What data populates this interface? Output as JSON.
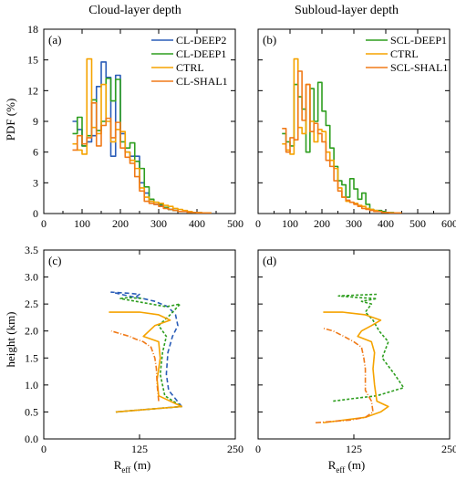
{
  "titles": {
    "left": "Cloud-layer depth",
    "right": "Subloud-layer depth"
  },
  "colors": {
    "CL-DEEP2": "#2a5db8",
    "CL-DEEP1": "#2e9e1f",
    "SCL-DEEP1": "#2e9e1f",
    "CTRL": "#f5a300",
    "CL-SHAL1": "#f07a18",
    "SCL-SHAL1": "#f07a18"
  },
  "axes": {
    "pdf_ylabel": "PDF (%)",
    "height_ylabel": "height (km)",
    "xlabel_main": "R",
    "xlabel_sub": "eff",
    "xlabel_unit": " (m)"
  },
  "chart_data": [
    {
      "panel": "a",
      "label": "(a)",
      "type": "line",
      "step": true,
      "bin_width": 12.5,
      "xlim": [
        0,
        500
      ],
      "ylim": [
        0,
        18
      ],
      "xticks": [
        0,
        100,
        200,
        300,
        400,
        500
      ],
      "yticks": [
        0,
        3,
        6,
        9,
        12,
        15,
        18
      ],
      "legend_position": "top-right",
      "series": [
        {
          "name": "CL-DEEP2",
          "x0": 75,
          "values": [
            9.0,
            8.2,
            6.6,
            7.0,
            7.6,
            12.4,
            14.8,
            13.3,
            5.6,
            13.5,
            7.8,
            6.0,
            5.6,
            5.6,
            3.0,
            2.0,
            1.2,
            0.9,
            0.8,
            0.6,
            0.4,
            0.3,
            0.2,
            0.2,
            0.1,
            0.1,
            0.1,
            0.05,
            0.05
          ]
        },
        {
          "name": "CL-DEEP1",
          "x0": 75,
          "values": [
            7.8,
            9.4,
            6.6,
            7.6,
            11.1,
            8.1,
            9.0,
            13.2,
            11.0,
            13.1,
            7.0,
            6.4,
            6.9,
            5.1,
            4.4,
            2.6,
            1.4,
            1.1,
            0.9,
            0.6,
            0.4,
            0.3,
            0.2,
            0.2,
            0.1,
            0.1,
            0.05,
            0.05,
            0.05
          ]
        },
        {
          "name": "CTRL",
          "x0": 75,
          "values": [
            6.8,
            6.2,
            5.8,
            15.1,
            8.4,
            7.8,
            12.6,
            9.0,
            7.0,
            8.2,
            8.0,
            6.0,
            5.2,
            4.4,
            2.5,
            1.6,
            1.2,
            1.1,
            1.0,
            0.8,
            0.7,
            0.5,
            0.4,
            0.3,
            0.2,
            0.1,
            0.1,
            0.05,
            0.05
          ]
        },
        {
          "name": "CL-SHAL1",
          "x0": 75,
          "values": [
            6.2,
            7.6,
            6.8,
            7.4,
            10.8,
            6.6,
            8.6,
            9.3,
            7.4,
            8.9,
            6.4,
            5.5,
            4.9,
            3.6,
            2.2,
            1.2,
            1.0,
            0.9,
            0.7,
            0.5,
            0.4,
            0.3,
            0.2,
            0.2,
            0.1,
            0.1,
            0.05,
            0.05,
            0.05
          ]
        }
      ]
    },
    {
      "panel": "b",
      "label": "(b)",
      "type": "line",
      "step": true,
      "bin_width": 12.5,
      "xlim": [
        0,
        600
      ],
      "ylim": [
        0,
        18
      ],
      "xticks": [
        0,
        100,
        200,
        300,
        400,
        500,
        600
      ],
      "yticks": [
        0,
        3,
        6,
        9,
        12,
        15,
        18
      ],
      "legend_position": "top-right",
      "series": [
        {
          "name": "SCL-DEEP1",
          "x0": 75,
          "values": [
            7.8,
            7.0,
            6.6,
            12.6,
            11.4,
            10.2,
            6.0,
            12.2,
            9.0,
            12.8,
            10.0,
            8.6,
            6.4,
            4.6,
            3.2,
            2.8,
            1.6,
            3.4,
            2.4,
            1.4,
            2.0,
            0.9,
            0.4,
            0.3,
            0.3,
            0.2,
            0.1,
            0.1,
            0.05,
            0.05
          ]
        },
        {
          "name": "CTRL",
          "x0": 75,
          "values": [
            6.8,
            6.2,
            5.8,
            15.1,
            8.4,
            7.8,
            12.6,
            9.0,
            7.0,
            8.2,
            8.0,
            6.0,
            5.2,
            4.4,
            2.5,
            1.6,
            1.2,
            1.1,
            1.0,
            0.8,
            0.7,
            0.5,
            0.4,
            0.3,
            0.2,
            0.1,
            0.1,
            0.05,
            0.05,
            0.05
          ]
        },
        {
          "name": "SCL-SHAL1",
          "x0": 75,
          "values": [
            8.3,
            6.0,
            7.4,
            7.2,
            13.9,
            9.1,
            12.6,
            8.0,
            8.8,
            7.8,
            7.0,
            5.2,
            4.6,
            3.2,
            2.2,
            1.6,
            1.3,
            1.1,
            0.9,
            0.7,
            0.5,
            0.4,
            0.3,
            0.2,
            0.2,
            0.1,
            0.1,
            0.05,
            0.05,
            0.05
          ]
        }
      ]
    },
    {
      "panel": "c",
      "label": "(c)",
      "type": "line",
      "xlim": [
        0,
        250
      ],
      "ylim": [
        0,
        3.5
      ],
      "xticks": [
        0,
        125,
        250
      ],
      "yticks": [
        0,
        0.5,
        1.0,
        1.5,
        2.0,
        2.5,
        3.0,
        3.5
      ],
      "series": [
        {
          "ref": "CL-DEEP2",
          "dash": "5,3",
          "points": [
            [
              94,
              0.5
            ],
            [
              180,
              0.6
            ],
            [
              163,
              0.9
            ],
            [
              160,
              1.2
            ],
            [
              162,
              1.6
            ],
            [
              168,
              1.9
            ],
            [
              175,
              2.1
            ],
            [
              172,
              2.3
            ],
            [
              162,
              2.45
            ],
            [
              145,
              2.55
            ],
            [
              130,
              2.6
            ],
            [
              110,
              2.65
            ],
            [
              95,
              2.7
            ],
            [
              88,
              2.72
            ],
            [
              110,
              2.7
            ],
            [
              125,
              2.68
            ],
            [
              120,
              2.63
            ]
          ]
        },
        {
          "ref": "CL-DEEP1",
          "dash": "3,2",
          "points": [
            [
              94,
              0.5
            ],
            [
              180,
              0.6
            ],
            [
              158,
              0.8
            ],
            [
              152,
              1.2
            ],
            [
              155,
              1.6
            ],
            [
              160,
              1.9
            ],
            [
              150,
              2.1
            ],
            [
              165,
              2.3
            ],
            [
              178,
              2.5
            ],
            [
              160,
              2.45
            ],
            [
              140,
              2.5
            ],
            [
              120,
              2.55
            ],
            [
              100,
              2.6
            ],
            [
              110,
              2.62
            ],
            [
              130,
              2.6
            ]
          ]
        },
        {
          "ref": "CTRL",
          "dash": "",
          "points": [
            [
              94,
              0.5
            ],
            [
              180,
              0.6
            ],
            [
              150,
              0.8
            ],
            [
              148,
              1.1
            ],
            [
              152,
              1.5
            ],
            [
              150,
              1.8
            ],
            [
              130,
              1.9
            ],
            [
              145,
              2.1
            ],
            [
              165,
              2.2
            ],
            [
              150,
              2.3
            ],
            [
              125,
              2.35
            ],
            [
              105,
              2.35
            ],
            [
              85,
              2.35
            ]
          ]
        },
        {
          "ref": "CL-SHAL1",
          "dash": "6,2,1,2",
          "points": [
            [
              150,
              0.7
            ],
            [
              148,
              1.0
            ],
            [
              147,
              1.3
            ],
            [
              145,
              1.5
            ],
            [
              140,
              1.7
            ],
            [
              130,
              1.8
            ],
            [
              120,
              1.85
            ],
            [
              112,
              1.9
            ],
            [
              100,
              1.95
            ],
            [
              88,
              2.0
            ]
          ]
        }
      ]
    },
    {
      "panel": "d",
      "label": "(d)",
      "type": "line",
      "xlim": [
        0,
        250
      ],
      "ylim": [
        0,
        3.5
      ],
      "xticks": [
        0,
        125,
        250
      ],
      "yticks": [
        0,
        0.5,
        1.0,
        1.5,
        2.0,
        2.5,
        3.0,
        3.5
      ],
      "series": [
        {
          "ref": "SCL-DEEP1",
          "dash": "3,2",
          "points": [
            [
              98,
              0.7
            ],
            [
              125,
              0.75
            ],
            [
              155,
              0.8
            ],
            [
              190,
              0.95
            ],
            [
              178,
              1.2
            ],
            [
              162,
              1.5
            ],
            [
              170,
              1.8
            ],
            [
              158,
              2.0
            ],
            [
              150,
              2.2
            ],
            [
              140,
              2.35
            ],
            [
              148,
              2.5
            ],
            [
              135,
              2.55
            ],
            [
              155,
              2.6
            ],
            [
              130,
              2.62
            ],
            [
              105,
              2.65
            ],
            [
              155,
              2.68
            ]
          ]
        },
        {
          "ref": "CTRL",
          "dash": "",
          "points": [
            [
              85,
              0.3
            ],
            [
              140,
              0.4
            ],
            [
              160,
              0.5
            ],
            [
              170,
              0.6
            ],
            [
              155,
              0.7
            ],
            [
              152,
              1.0
            ],
            [
              150,
              1.3
            ],
            [
              152,
              1.6
            ],
            [
              148,
              1.8
            ],
            [
              130,
              1.9
            ],
            [
              135,
              2.0
            ],
            [
              148,
              2.1
            ],
            [
              160,
              2.2
            ],
            [
              140,
              2.3
            ],
            [
              110,
              2.35
            ],
            [
              85,
              2.35
            ]
          ]
        },
        {
          "ref": "SCL-SHAL1",
          "dash": "6,2,1,2",
          "points": [
            [
              75,
              0.3
            ],
            [
              120,
              0.35
            ],
            [
              140,
              0.4
            ],
            [
              150,
              0.5
            ],
            [
              148,
              0.7
            ],
            [
              140,
              0.9
            ],
            [
              140,
              1.1
            ],
            [
              140,
              1.3
            ],
            [
              138,
              1.5
            ],
            [
              135,
              1.7
            ],
            [
              125,
              1.8
            ],
            [
              112,
              1.9
            ],
            [
              98,
              2.0
            ],
            [
              85,
              2.05
            ]
          ]
        }
      ]
    }
  ]
}
